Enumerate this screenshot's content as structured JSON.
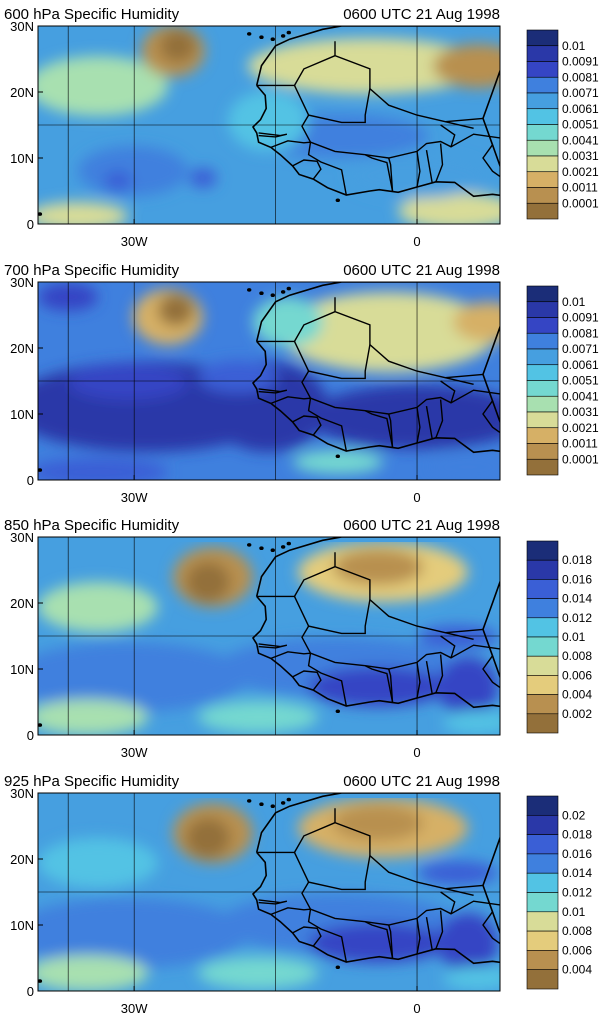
{
  "panels": [
    {
      "title": "600 hPa Specific Humidity",
      "time": "0600 UTC 21 Aug 1998",
      "lat_ticks": [
        "30N",
        "20N",
        "10N",
        "0"
      ],
      "lon_ticks": [
        "30W",
        "0"
      ],
      "colorbar_labels": [
        "0.01",
        "0.0091",
        "0.0081",
        "0.0071",
        "0.0061",
        "0.0051",
        "0.0041",
        "0.0031",
        "0.0021",
        "0.0011",
        "0.0001"
      ],
      "colorbar_colors": [
        "#1b2d78",
        "#2a38a8",
        "#3545c4",
        "#3a5fd6",
        "#3f80de",
        "#469fe0",
        "#52c3e4",
        "#74d8d0",
        "#a8e0b0",
        "#d8dc98",
        "#e4cc7c",
        "#d6b066",
        "#b89050",
        "#93703a"
      ],
      "moisture": "low"
    },
    {
      "title": "700 hPa Specific Humidity",
      "time": "0600 UTC 21 Aug 1998",
      "lat_ticks": [
        "30N",
        "20N",
        "10N",
        "0"
      ],
      "lon_ticks": [
        "30W",
        "0"
      ],
      "colorbar_labels": [
        "0.01",
        "0.0091",
        "0.0081",
        "0.0071",
        "0.0061",
        "0.0051",
        "0.0041",
        "0.0031",
        "0.0021",
        "0.0011",
        "0.0001"
      ],
      "colorbar_colors": [
        "#1b2d78",
        "#2a38a8",
        "#3545c4",
        "#3a5fd6",
        "#3f80de",
        "#469fe0",
        "#52c3e4",
        "#74d8d0",
        "#a8e0b0",
        "#d8dc98",
        "#e4cc7c",
        "#d6b066",
        "#b89050",
        "#93703a"
      ],
      "moisture": "high"
    },
    {
      "title": "850 hPa Specific Humidity",
      "time": "0600 UTC 21 Aug 1998",
      "lat_ticks": [
        "30N",
        "20N",
        "10N",
        "0"
      ],
      "lon_ticks": [
        "30W",
        "0"
      ],
      "colorbar_labels": [
        "0.018",
        "0.016",
        "0.014",
        "0.012",
        "0.01",
        "0.008",
        "0.006",
        "0.004",
        "0.002"
      ],
      "colorbar_colors": [
        "#1b2d78",
        "#2a38a8",
        "#3545c4",
        "#3a5fd6",
        "#3f80de",
        "#469fe0",
        "#52c3e4",
        "#74d8d0",
        "#a8e0b0",
        "#d8dc98",
        "#e4cc7c",
        "#d6b066",
        "#b89050",
        "#93703a"
      ],
      "moisture": "mid"
    },
    {
      "title": "925 hPa Specific Humidity",
      "time": "0600 UTC 21 Aug 1998",
      "lat_ticks": [
        "30N",
        "20N",
        "10N",
        "0"
      ],
      "lon_ticks": [
        "30W",
        "0"
      ],
      "colorbar_labels": [
        "0.02",
        "0.018",
        "0.016",
        "0.014",
        "0.012",
        "0.01",
        "0.008",
        "0.006",
        "0.004"
      ],
      "colorbar_colors": [
        "#1b2d78",
        "#2a38a8",
        "#3545c4",
        "#3a5fd6",
        "#3f80de",
        "#469fe0",
        "#52c3e4",
        "#74d8d0",
        "#a8e0b0",
        "#d8dc98",
        "#e4cc7c",
        "#d6b066",
        "#b89050",
        "#93703a"
      ],
      "moisture": "mid"
    }
  ]
}
